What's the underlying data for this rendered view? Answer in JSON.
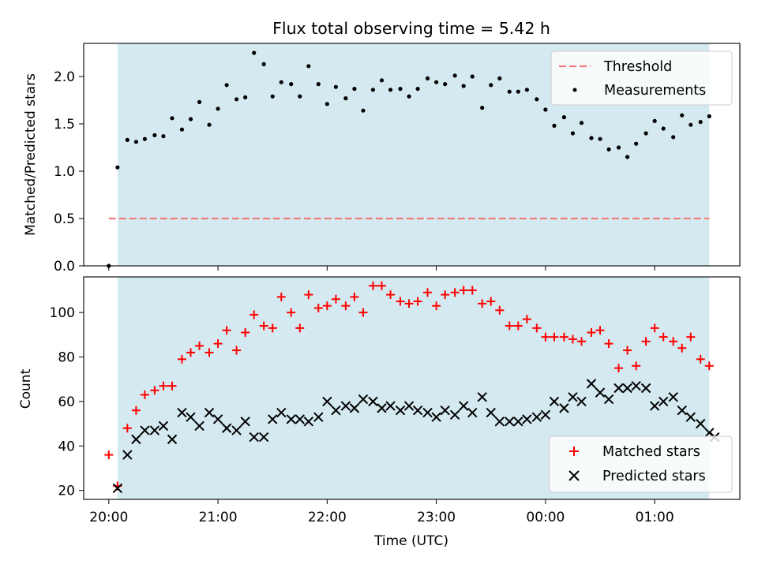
{
  "chart_data": [
    {
      "type": "scatter",
      "title": "Flux total observing time = 5.42 h",
      "xlabel": "",
      "ylabel": "Matched/Predicted stars",
      "ylim": [
        0,
        2.35
      ],
      "yticks": [
        "0.0",
        "0.5",
        "1.0",
        "1.5",
        "2.0"
      ],
      "ytick_values": [
        0,
        0.5,
        1.0,
        1.5,
        2.0
      ],
      "shaded_span": {
        "start_h": 20.08,
        "end_h": 25.5,
        "color": "#d4eaf0"
      },
      "threshold": {
        "name": "Threshold",
        "value": 0.5,
        "color": "#f07c7c"
      },
      "legend": [
        "Threshold",
        "Measurements"
      ],
      "legend_position": "top-right",
      "series": [
        {
          "name": "Measurements",
          "color": "#000000",
          "x_hours": [
            20.0,
            20.08,
            20.17,
            20.25,
            20.33,
            20.42,
            20.5,
            20.58,
            20.67,
            20.75,
            20.83,
            20.92,
            21.0,
            21.08,
            21.17,
            21.25,
            21.33,
            21.42,
            21.5,
            21.58,
            21.67,
            21.75,
            21.83,
            21.92,
            22.0,
            22.08,
            22.17,
            22.25,
            22.33,
            22.42,
            22.5,
            22.58,
            22.67,
            22.75,
            22.83,
            22.92,
            23.0,
            23.08,
            23.17,
            23.25,
            23.33,
            23.42,
            23.5,
            23.58,
            23.67,
            23.75,
            23.83,
            23.92,
            24.0,
            24.08,
            24.17,
            24.25,
            24.33,
            24.42,
            24.5,
            24.58,
            24.67,
            24.75,
            24.83,
            24.92,
            25.0,
            25.08,
            25.17,
            25.25,
            25.33,
            25.42,
            25.5
          ],
          "values": [
            0.0,
            1.04,
            1.33,
            1.31,
            1.34,
            1.38,
            1.37,
            1.56,
            1.44,
            1.55,
            1.73,
            1.49,
            1.66,
            1.91,
            1.76,
            1.78,
            2.25,
            2.13,
            1.79,
            1.94,
            1.92,
            1.79,
            2.11,
            1.92,
            1.71,
            1.89,
            1.77,
            1.87,
            1.64,
            1.86,
            1.96,
            1.86,
            1.87,
            1.79,
            1.87,
            1.98,
            1.94,
            1.92,
            2.01,
            1.9,
            2.0,
            1.67,
            1.91,
            1.98,
            1.84,
            1.84,
            1.86,
            1.76,
            1.65,
            1.48,
            1.57,
            1.4,
            1.51,
            1.35,
            1.34,
            1.23,
            1.25,
            1.15,
            1.29,
            1.4,
            1.53,
            1.45,
            1.36,
            1.59,
            1.49,
            1.52,
            1.58
          ]
        }
      ]
    },
    {
      "type": "scatter",
      "title": "",
      "xlabel": "Time (UTC)",
      "ylabel": "Count",
      "xlim_h": [
        19.77,
        25.78
      ],
      "xticks": [
        "20:00",
        "21:00",
        "22:00",
        "23:00",
        "00:00",
        "01:00"
      ],
      "xtick_hours": [
        20,
        21,
        22,
        23,
        24,
        25
      ],
      "ylim": [
        16,
        116
      ],
      "yticks": [
        "20",
        "40",
        "60",
        "80",
        "100"
      ],
      "ytick_values": [
        20,
        40,
        60,
        80,
        100
      ],
      "shaded_span": {
        "start_h": 20.08,
        "end_h": 25.5,
        "color": "#d4eaf0"
      },
      "legend": [
        "Matched stars",
        "Predicted stars"
      ],
      "legend_position": "bottom-right",
      "series": [
        {
          "name": "Matched stars",
          "marker": "+",
          "color": "#ff0000",
          "x_hours": [
            20.0,
            20.08,
            20.17,
            20.25,
            20.33,
            20.42,
            20.5,
            20.58,
            20.67,
            20.75,
            20.83,
            20.92,
            21.0,
            21.08,
            21.17,
            21.25,
            21.33,
            21.42,
            21.5,
            21.58,
            21.67,
            21.75,
            21.83,
            21.92,
            22.0,
            22.08,
            22.17,
            22.25,
            22.33,
            22.42,
            22.5,
            22.58,
            22.67,
            22.75,
            22.83,
            22.92,
            23.0,
            23.08,
            23.17,
            23.25,
            23.33,
            23.42,
            23.5,
            23.58,
            23.67,
            23.75,
            23.83,
            23.92,
            24.0,
            24.08,
            24.17,
            24.25,
            24.33,
            24.42,
            24.5,
            24.58,
            24.67,
            24.75,
            24.83,
            24.92,
            25.0,
            25.08,
            25.17,
            25.25,
            25.33,
            25.42,
            25.5
          ],
          "values": [
            36,
            22,
            48,
            56,
            63,
            65,
            67,
            67,
            79,
            82,
            85,
            82,
            86,
            92,
            83,
            91,
            99,
            94,
            93,
            107,
            100,
            93,
            108,
            102,
            103,
            106,
            103,
            107,
            100,
            112,
            112,
            108,
            105,
            104,
            105,
            109,
            103,
            108,
            109,
            110,
            110,
            104,
            105,
            101,
            94,
            94,
            97,
            93,
            89,
            89,
            89,
            88,
            87,
            91,
            92,
            86,
            75,
            83,
            76,
            87,
            93,
            89,
            87,
            84,
            89,
            79,
            76
          ]
        },
        {
          "name": "Predicted stars",
          "marker": "x",
          "color": "#000000",
          "x_hours": [
            20.08,
            20.17,
            20.25,
            20.33,
            20.42,
            20.5,
            20.58,
            20.67,
            20.75,
            20.83,
            20.92,
            21.0,
            21.08,
            21.17,
            21.25,
            21.33,
            21.42,
            21.5,
            21.58,
            21.67,
            21.75,
            21.83,
            21.92,
            22.0,
            22.08,
            22.17,
            22.25,
            22.33,
            22.42,
            22.5,
            22.58,
            22.67,
            22.75,
            22.83,
            22.92,
            23.0,
            23.08,
            23.17,
            23.25,
            23.33,
            23.42,
            23.5,
            23.58,
            23.67,
            23.75,
            23.83,
            23.92,
            24.0,
            24.08,
            24.17,
            24.25,
            24.33,
            24.42,
            24.5,
            24.58,
            24.67,
            24.75,
            24.83,
            24.92,
            25.0,
            25.08,
            25.17,
            25.25,
            25.33,
            25.42,
            25.5,
            25.55
          ],
          "values": [
            21,
            36,
            43,
            47,
            47,
            49,
            43,
            55,
            53,
            49,
            55,
            52,
            48,
            47,
            51,
            44,
            44,
            52,
            55,
            52,
            52,
            51,
            53,
            60,
            56,
            58,
            57,
            61,
            60,
            57,
            58,
            56,
            58,
            56,
            55,
            53,
            56,
            54,
            58,
            55,
            62,
            55,
            51,
            51,
            51,
            52,
            53,
            54,
            60,
            57,
            62,
            60,
            68,
            64,
            61,
            66,
            66,
            67,
            66,
            58,
            60,
            62,
            56,
            53,
            50,
            46,
            44
          ]
        }
      ]
    }
  ]
}
